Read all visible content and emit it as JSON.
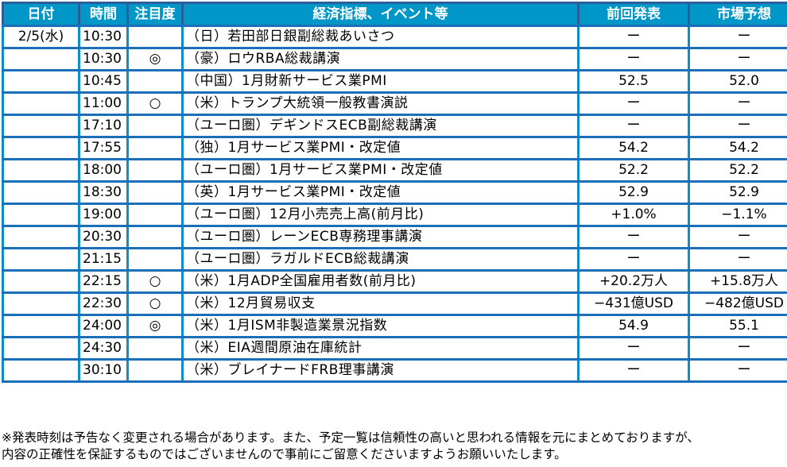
{
  "table": {
    "headers": {
      "date": "日付",
      "time": "時間",
      "attention": "注目度",
      "event": "経済指標、イベント等",
      "previous": "前回発表",
      "forecast": "市場予想"
    },
    "rows": [
      {
        "date": "2/5(水)",
        "time": "10:30",
        "attention": "",
        "event": "（日）若田部日銀副総裁あいさつ",
        "previous": "ー",
        "forecast": "ー"
      },
      {
        "date": "",
        "time": "10:30",
        "attention": "◎",
        "event": "（豪）ロウRBA総裁講演",
        "previous": "ー",
        "forecast": "ー"
      },
      {
        "date": "",
        "time": "10:45",
        "attention": "",
        "event": "（中国）1月財新サービス業PMI",
        "previous": "52.5",
        "forecast": "52.0"
      },
      {
        "date": "",
        "time": "11:00",
        "attention": "○",
        "event": "（米）トランプ大統領一般教書演説",
        "previous": "ー",
        "forecast": "ー"
      },
      {
        "date": "",
        "time": "17:10",
        "attention": "",
        "event": "（ユーロ圏）デギンドスECB副総裁講演",
        "previous": "ー",
        "forecast": "ー"
      },
      {
        "date": "",
        "time": "17:55",
        "attention": "",
        "event": "（独）1月サービス業PMI・改定値",
        "previous": "54.2",
        "forecast": "54.2"
      },
      {
        "date": "",
        "time": "18:00",
        "attention": "",
        "event": "（ユーロ圏）1月サービス業PMI・改定値",
        "previous": "52.2",
        "forecast": "52.2"
      },
      {
        "date": "",
        "time": "18:30",
        "attention": "",
        "event": "（英）1月サービス業PMI・改定値",
        "previous": "52.9",
        "forecast": "52.9"
      },
      {
        "date": "",
        "time": "19:00",
        "attention": "",
        "event": "（ユーロ圏）12月小売売上高(前月比)",
        "previous": "+1.0%",
        "forecast": "−1.1%"
      },
      {
        "date": "",
        "time": "20:30",
        "attention": "",
        "event": "（ユーロ圏）レーンECB専務理事講演",
        "previous": "ー",
        "forecast": "ー"
      },
      {
        "date": "",
        "time": "21:15",
        "attention": "",
        "event": "（ユーロ圏）ラガルドECB総裁講演",
        "previous": "ー",
        "forecast": "ー"
      },
      {
        "date": "",
        "time": "22:15",
        "attention": "○",
        "event": "（米）1月ADP全国雇用者数(前月比)",
        "previous": "+20.2万人",
        "forecast": "+15.8万人"
      },
      {
        "date": "",
        "time": "22:30",
        "attention": "○",
        "event": "（米）12月貿易収支",
        "previous": "−431億USD",
        "forecast": "−482億USD"
      },
      {
        "date": "",
        "time": "24:00",
        "attention": "◎",
        "event": "（米）1月ISM非製造業景況指数",
        "previous": "54.9",
        "forecast": "55.1"
      },
      {
        "date": "",
        "time": "24:30",
        "attention": "",
        "event": "（米）EIA週間原油在庫統計",
        "previous": "ー",
        "forecast": "ー"
      },
      {
        "date": "",
        "time": "30:10",
        "attention": "",
        "event": "（米）ブレイナードFRB理事講演",
        "previous": "ー",
        "forecast": "ー"
      }
    ]
  },
  "notes": {
    "line1": "※発表時刻は予告なく変更される場合があります。また、予定一覧は信頼性の高いと思われる情報を元にまとめておりますが、",
    "line2": "内容の正確性を保証するものではございませんので事前にご留意くださいますようお願いいたします。"
  },
  "colors": {
    "header_bg": "#0096c8",
    "header_text": "#ffffff",
    "grid_line": "#0b8fc9",
    "outer_border": "#1a6fb8"
  }
}
